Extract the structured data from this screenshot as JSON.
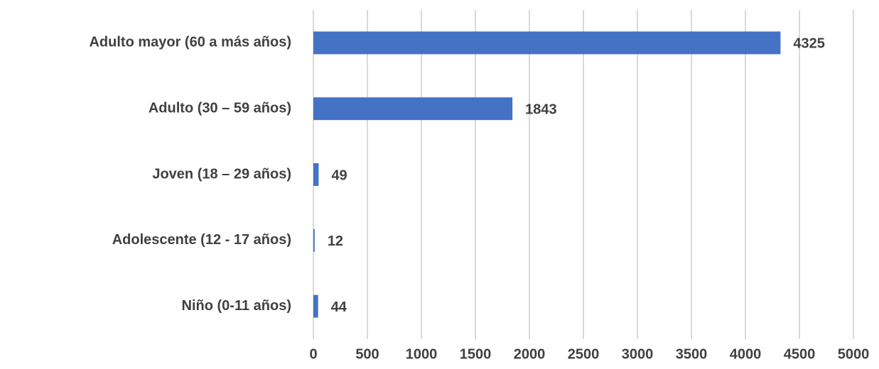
{
  "chart_data": {
    "type": "bar",
    "orientation": "horizontal",
    "categories": [
      "Adulto mayor (60 a más años)",
      "Adulto  (30 – 59 años)",
      "Joven (18 – 29 años)",
      "Adolescente (12 - 17 años)",
      "Niño (0-11 años)"
    ],
    "values": [
      4325,
      1843,
      49,
      12,
      44
    ],
    "color": "#4472c4",
    "xlim": [
      0,
      5000
    ],
    "xticks": [
      0,
      500,
      1000,
      1500,
      2000,
      2500,
      3000,
      3500,
      4000,
      4500,
      5000
    ],
    "grid": true
  }
}
